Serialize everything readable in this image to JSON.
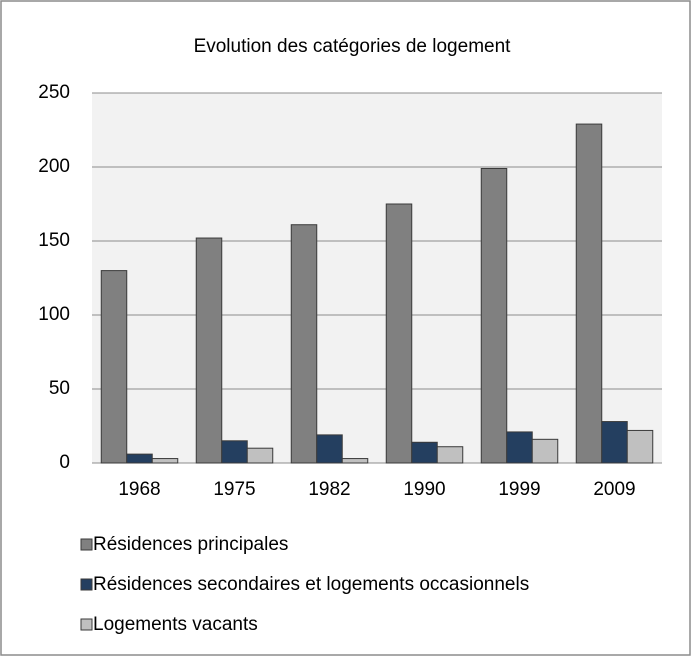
{
  "chart_data": {
    "type": "bar",
    "title": "Evolution des catégories de logement",
    "categories": [
      "1968",
      "1975",
      "1982",
      "1990",
      "1999",
      "2009"
    ],
    "series": [
      {
        "name": "Résidences principales",
        "color": "#808080",
        "values": [
          130,
          152,
          161,
          175,
          199,
          229
        ]
      },
      {
        "name": "Résidences secondaires et logements occasionnels",
        "color": "#243f60",
        "values": [
          6,
          15,
          19,
          14,
          21,
          28
        ]
      },
      {
        "name": "Logements vacants",
        "color": "#c0c0c0",
        "values": [
          3,
          10,
          3,
          11,
          16,
          22
        ]
      }
    ],
    "ylim": [
      0,
      250
    ],
    "yticks": [
      0,
      50,
      100,
      150,
      200,
      250
    ],
    "grid": true,
    "legend": "bottom"
  }
}
